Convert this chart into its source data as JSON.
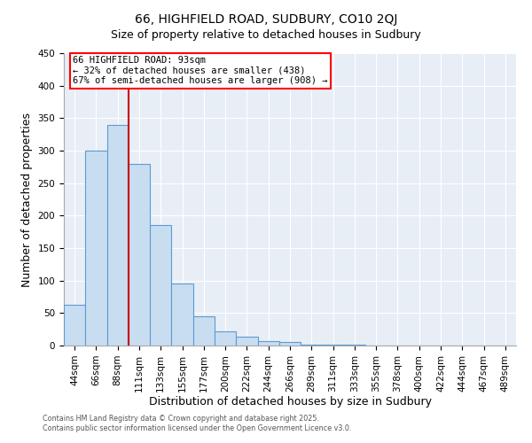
{
  "title": "66, HIGHFIELD ROAD, SUDBURY, CO10 2QJ",
  "subtitle": "Size of property relative to detached houses in Sudbury",
  "xlabel": "Distribution of detached houses by size in Sudbury",
  "ylabel": "Number of detached properties",
  "bin_labels": [
    "44sqm",
    "66sqm",
    "88sqm",
    "111sqm",
    "133sqm",
    "155sqm",
    "177sqm",
    "200sqm",
    "222sqm",
    "244sqm",
    "266sqm",
    "289sqm",
    "311sqm",
    "333sqm",
    "355sqm",
    "378sqm",
    "400sqm",
    "422sqm",
    "444sqm",
    "467sqm",
    "489sqm"
  ],
  "bar_values": [
    63,
    300,
    340,
    280,
    185,
    95,
    45,
    22,
    14,
    7,
    5,
    2,
    1,
    1,
    0,
    0,
    0,
    0,
    0,
    0,
    0
  ],
  "bar_color": "#c9ddf0",
  "bar_edge_color": "#5b9bd5",
  "vline_color": "#cc0000",
  "vline_x_index": 2,
  "ylim": [
    0,
    450
  ],
  "yticks": [
    0,
    50,
    100,
    150,
    200,
    250,
    300,
    350,
    400,
    450
  ],
  "annotation_title": "66 HIGHFIELD ROAD: 93sqm",
  "annotation_line1": "← 32% of detached houses are smaller (438)",
  "annotation_line2": "67% of semi-detached houses are larger (908) →",
  "footer_line1": "Contains HM Land Registry data © Crown copyright and database right 2025.",
  "footer_line2": "Contains public sector information licensed under the Open Government Licence v3.0.",
  "bg_color": "#e8eef6",
  "fig_bg_color": "#ffffff",
  "grid_color": "#ffffff",
  "title_fontsize": 10,
  "subtitle_fontsize": 9,
  "xlabel_fontsize": 9,
  "ylabel_fontsize": 9,
  "tick_fontsize": 7.5,
  "annotation_fontsize": 7.5,
  "footer_fontsize": 5.8
}
